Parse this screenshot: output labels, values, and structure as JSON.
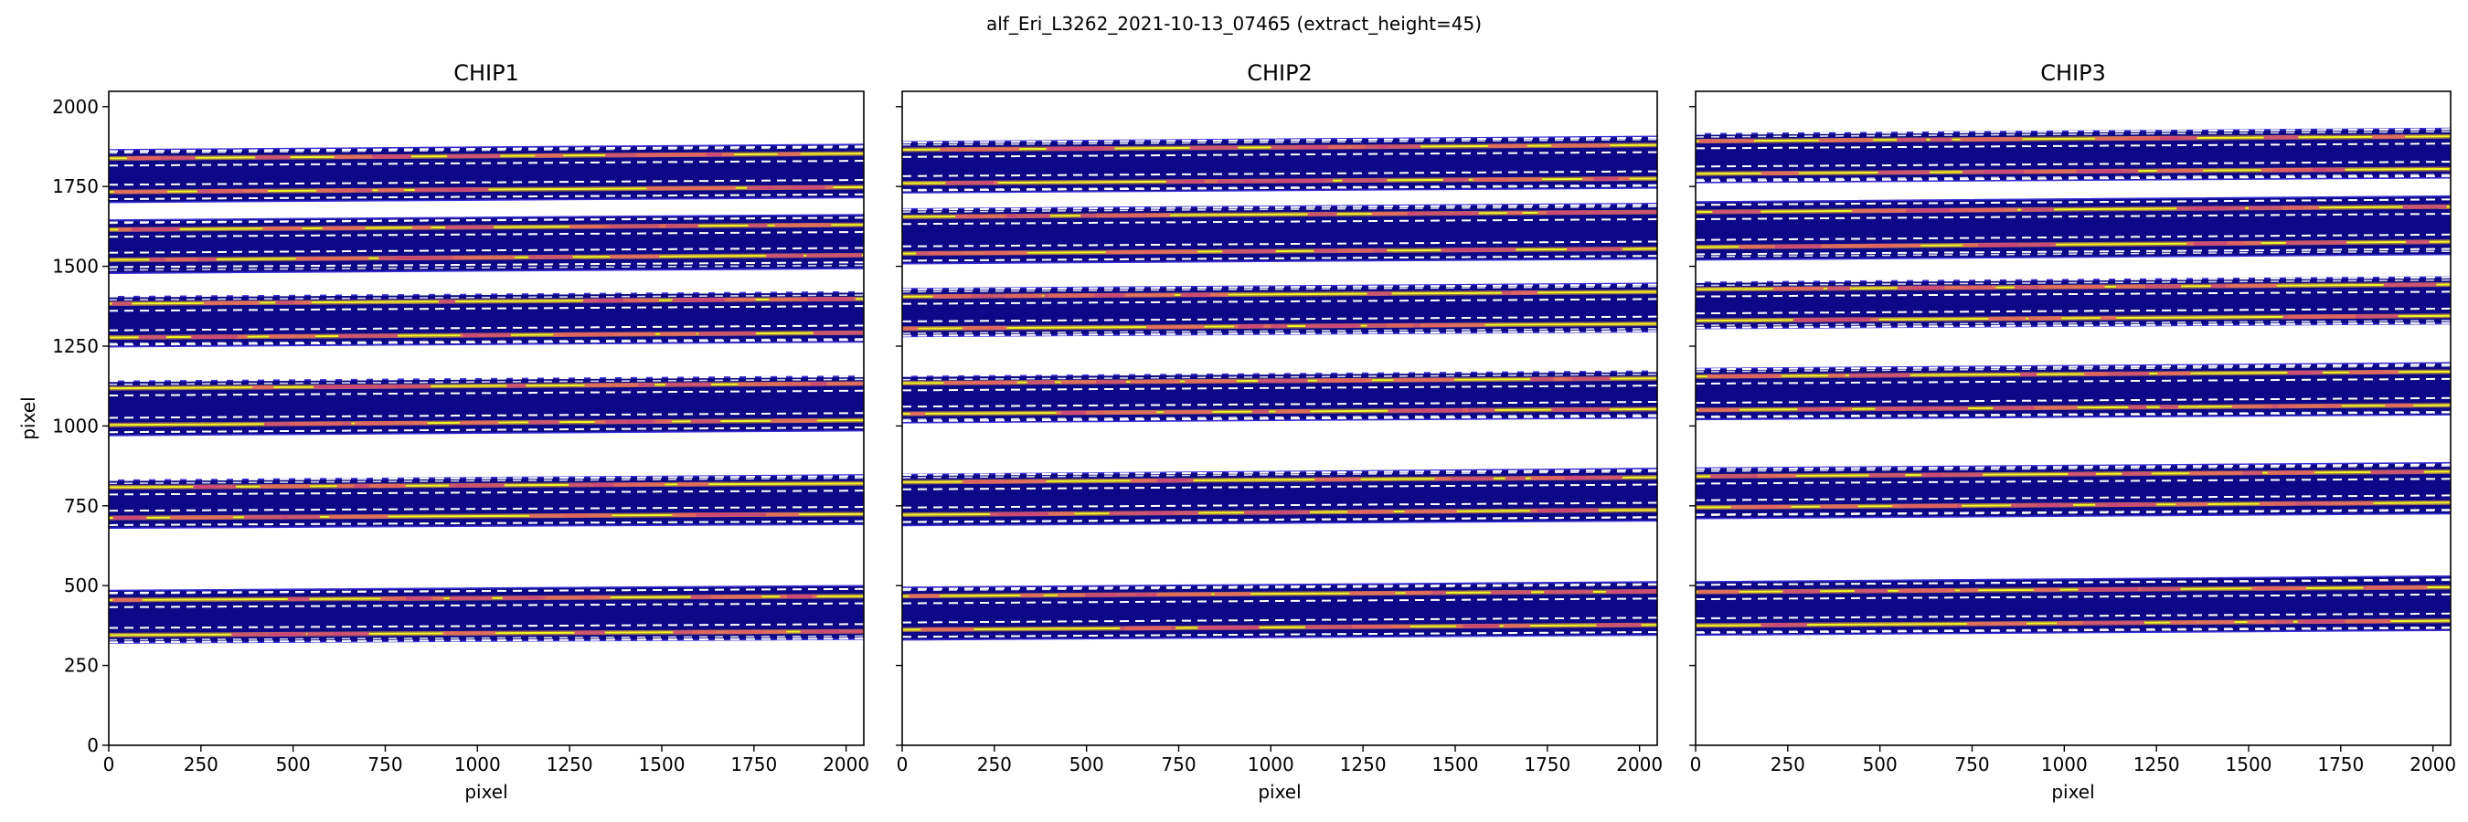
{
  "chart_data": {
    "type": "heatmap",
    "suptitle": "alf_Eri_L3262_2021-10-13_07465  (extract_height=45)",
    "xlabel": "pixel",
    "ylabel": "pixel",
    "xlim": [
      0,
      2048
    ],
    "ylim": [
      0,
      2048
    ],
    "x_ticks": [
      0,
      250,
      500,
      750,
      1000,
      1250,
      1500,
      1750,
      2000
    ],
    "y_ticks": [
      0,
      250,
      500,
      750,
      1000,
      1250,
      1500,
      1750,
      2000
    ],
    "extract_height": 45,
    "colors": {
      "background": "#ffffff",
      "order_fill": "#0d0887",
      "order_edge": "#3a2fd6",
      "trace_line": "#f0f921",
      "trace_glow": "#fdb42f",
      "hot_spot": "#cc4778",
      "warm_spot": "#e16462",
      "extract_line": "#ffffff",
      "axis": "#000000"
    },
    "panels": [
      {
        "name": "CHIP1",
        "orders": [
          {
            "y0_lo": 320,
            "y0_hi": 485,
            "y1_lo": 332,
            "y1_hi": 500,
            "traces": [
              345,
              455
            ]
          },
          {
            "y0_lo": 680,
            "y0_hi": 830,
            "y1_lo": 692,
            "y1_hi": 847,
            "traces": [
              712,
              808
            ]
          },
          {
            "y0_lo": 970,
            "y0_hi": 1140,
            "y1_lo": 985,
            "y1_hi": 1156,
            "traces": [
              1003,
              1118
            ]
          },
          {
            "y0_lo": 1248,
            "y0_hi": 1405,
            "y1_lo": 1263,
            "y1_hi": 1420,
            "traces": [
              1277,
              1383
            ]
          },
          {
            "y0_lo": 1478,
            "y0_hi": 1645,
            "y1_lo": 1493,
            "y1_hi": 1662,
            "traces": [
              1520,
              1615
            ]
          },
          {
            "y0_lo": 1700,
            "y0_hi": 1865,
            "y1_lo": 1715,
            "y1_hi": 1882,
            "traces": [
              1733,
              1838
            ]
          }
        ]
      },
      {
        "name": "CHIP2",
        "orders": [
          {
            "y0_lo": 330,
            "y0_hi": 495,
            "y1_lo": 345,
            "y1_hi": 512,
            "traces": [
              362,
              467
            ]
          },
          {
            "y0_lo": 688,
            "y0_hi": 848,
            "y1_lo": 703,
            "y1_hi": 867,
            "traces": [
              722,
              824
            ]
          },
          {
            "y0_lo": 1010,
            "y0_hi": 1155,
            "y1_lo": 1025,
            "y1_hi": 1172,
            "traces": [
              1038,
              1134
            ]
          },
          {
            "y0_lo": 1280,
            "y0_hi": 1430,
            "y1_lo": 1295,
            "y1_hi": 1447,
            "traces": [
              1305,
              1405
            ]
          },
          {
            "y0_lo": 1508,
            "y0_hi": 1680,
            "y1_lo": 1523,
            "y1_hi": 1697,
            "traces": [
              1540,
              1655
            ]
          },
          {
            "y0_lo": 1730,
            "y0_hi": 1890,
            "y1_lo": 1745,
            "y1_hi": 1907,
            "traces": [
              1760,
              1865
            ]
          }
        ]
      },
      {
        "name": "CHIP3",
        "orders": [
          {
            "y0_lo": 345,
            "y0_hi": 512,
            "y1_lo": 360,
            "y1_hi": 530,
            "traces": [
              375,
              480
            ]
          },
          {
            "y0_lo": 710,
            "y0_hi": 868,
            "y1_lo": 725,
            "y1_hi": 885,
            "traces": [
              745,
              842
            ]
          },
          {
            "y0_lo": 1020,
            "y0_hi": 1180,
            "y1_lo": 1035,
            "y1_hi": 1198,
            "traces": [
              1050,
              1155
            ]
          },
          {
            "y0_lo": 1305,
            "y0_hi": 1450,
            "y1_lo": 1320,
            "y1_hi": 1467,
            "traces": [
              1330,
              1428
            ]
          },
          {
            "y0_lo": 1520,
            "y0_hi": 1702,
            "y1_lo": 1537,
            "y1_hi": 1720,
            "traces": [
              1560,
              1670
            ]
          },
          {
            "y0_lo": 1762,
            "y0_hi": 1915,
            "y1_lo": 1777,
            "y1_hi": 1932,
            "traces": [
              1790,
              1892
            ]
          }
        ]
      }
    ]
  }
}
